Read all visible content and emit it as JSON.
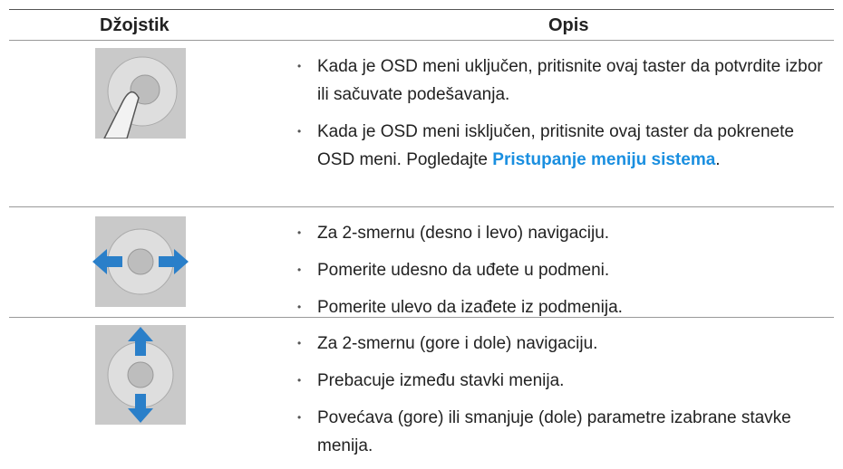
{
  "table": {
    "header": [
      "Džojstik",
      "Opis"
    ],
    "rows": [
      {
        "items": [
          {
            "text": "Kada je OSD meni uključen, pritisnite ovaj taster da potvrdite izbor ili sačuvate podešavanja."
          },
          {
            "text": "Kada je OSD meni isključen, pritisnite ovaj taster da pokrenete OSD meni. Pogledajte ",
            "link": "Pristupanje meniju sistema",
            "end": "."
          }
        ]
      },
      {
        "items": [
          {
            "text": "Za 2-smernu (desno i levo) navigaciju."
          },
          {
            "text": "Pomerite udesno da uđete u podmeni."
          },
          {
            "text": "Pomerite ulevo da izađete iz podmenija."
          }
        ]
      },
      {
        "items": [
          {
            "text": "Za 2-smernu (gore i dole) navigaciju."
          },
          {
            "text": "Prebacuje između stavki menija."
          },
          {
            "text": "Povećava (gore) ili smanjuje (dole) parametre izabrane stavke menija."
          }
        ]
      }
    ]
  }
}
